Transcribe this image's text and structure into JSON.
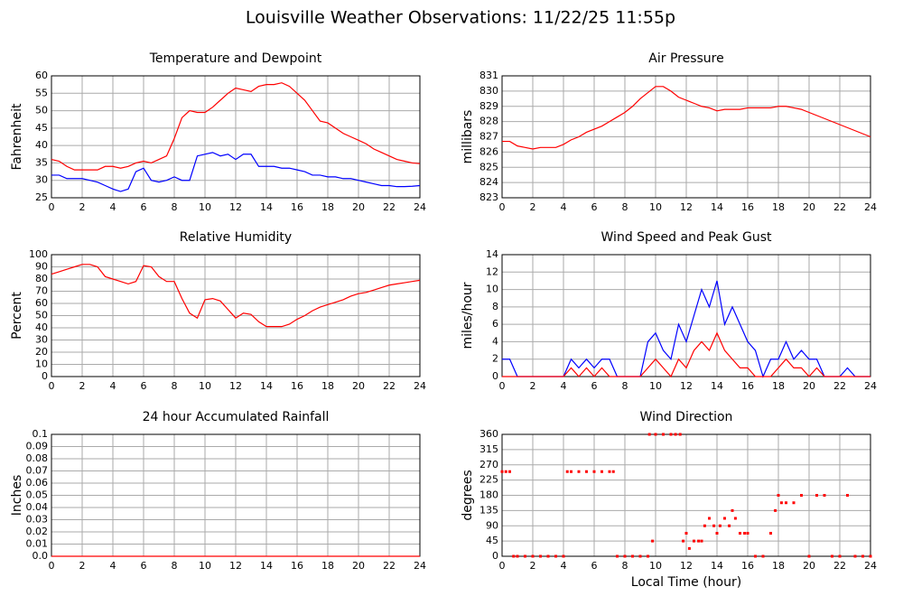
{
  "title": "Louisville Weather Observations: 11/22/25 11:55p",
  "chart_data": [
    {
      "type": "line",
      "title": "Temperature and Dewpoint",
      "ylabel": "Fahrenheit",
      "grid": true,
      "xlim": [
        0,
        24
      ],
      "xticks": [
        0,
        2,
        4,
        6,
        8,
        10,
        12,
        14,
        16,
        18,
        20,
        22,
        24
      ],
      "ylim": [
        25,
        60
      ],
      "yticks": [
        25,
        30,
        35,
        40,
        45,
        50,
        55,
        60
      ],
      "x": [
        0,
        0.5,
        1,
        1.5,
        2,
        2.5,
        3,
        3.5,
        4,
        4.5,
        5,
        5.5,
        6,
        6.5,
        7,
        7.5,
        8,
        8.5,
        9,
        9.5,
        10,
        10.5,
        11,
        11.5,
        12,
        12.5,
        13,
        13.5,
        14,
        14.5,
        15,
        15.5,
        16,
        16.5,
        17,
        17.5,
        18,
        18.5,
        19,
        19.5,
        20,
        20.5,
        21,
        21.5,
        22,
        22.5,
        23,
        23.5,
        24
      ],
      "series": [
        {
          "name": "Temperature",
          "color": "#ff0000",
          "values": [
            36,
            35.5,
            34,
            33,
            33,
            33,
            33,
            34,
            34,
            33.5,
            34,
            35,
            35.5,
            35,
            36,
            37,
            42,
            48,
            50,
            49.5,
            49.5,
            51,
            53,
            55,
            56.5,
            56,
            55.5,
            57,
            57.5,
            57.5,
            58,
            57,
            55,
            53,
            50,
            47,
            46.5,
            45,
            43.5,
            42.5,
            41.5,
            40.5,
            39,
            38,
            37,
            36,
            35.5,
            35,
            34.8
          ]
        },
        {
          "name": "Dewpoint",
          "color": "#0000ff",
          "values": [
            31.5,
            31.5,
            30.5,
            30.5,
            30.5,
            30,
            29.5,
            28.5,
            27.5,
            26.8,
            27.5,
            32.5,
            33.5,
            30,
            29.5,
            30,
            31,
            30,
            30,
            37,
            37.5,
            38,
            37,
            37.5,
            36,
            37.5,
            37.5,
            34,
            34,
            34,
            33.5,
            33.5,
            33,
            32.5,
            31.5,
            31.5,
            31,
            31,
            30.5,
            30.5,
            30,
            29.5,
            29,
            28.5,
            28.5,
            28.2,
            28.2,
            28.3,
            28.5
          ]
        }
      ]
    },
    {
      "type": "line",
      "title": "Air Pressure",
      "ylabel": "millibars",
      "grid": true,
      "xlim": [
        0,
        24
      ],
      "xticks": [
        0,
        2,
        4,
        6,
        8,
        10,
        12,
        14,
        16,
        18,
        20,
        22,
        24
      ],
      "ylim": [
        823,
        831
      ],
      "yticks": [
        823,
        824,
        825,
        826,
        827,
        828,
        829,
        830,
        831
      ],
      "x": [
        0,
        0.5,
        1,
        1.5,
        2,
        2.5,
        3,
        3.5,
        4,
        4.5,
        5,
        5.5,
        6,
        6.5,
        7,
        7.5,
        8,
        8.5,
        9,
        9.5,
        10,
        10.5,
        11,
        11.5,
        12,
        12.5,
        13,
        13.5,
        14,
        14.5,
        15,
        15.5,
        16,
        16.5,
        17,
        17.5,
        18,
        18.5,
        19,
        19.5,
        20,
        20.5,
        21,
        21.5,
        22,
        22.5,
        23,
        23.5,
        24
      ],
      "series": [
        {
          "name": "Pressure",
          "color": "#ff0000",
          "values": [
            826.7,
            826.7,
            826.4,
            826.3,
            826.2,
            826.3,
            826.3,
            826.3,
            826.5,
            826.8,
            827,
            827.3,
            827.5,
            827.7,
            828,
            828.3,
            828.6,
            829,
            829.5,
            829.9,
            830.3,
            830.3,
            830,
            829.6,
            829.4,
            829.2,
            829,
            828.9,
            828.7,
            828.8,
            828.8,
            828.8,
            828.9,
            828.9,
            828.9,
            828.9,
            829,
            829,
            828.9,
            828.8,
            828.6,
            828.4,
            828.2,
            828,
            827.8,
            827.6,
            827.4,
            827.2,
            827
          ]
        }
      ]
    },
    {
      "type": "line",
      "title": "Relative Humidity",
      "ylabel": "Percent",
      "grid": true,
      "xlim": [
        0,
        24
      ],
      "xticks": [
        0,
        2,
        4,
        6,
        8,
        10,
        12,
        14,
        16,
        18,
        20,
        22,
        24
      ],
      "ylim": [
        0,
        100
      ],
      "yticks": [
        0,
        10,
        20,
        30,
        40,
        50,
        60,
        70,
        80,
        90,
        100
      ],
      "x": [
        0,
        0.5,
        1,
        1.5,
        2,
        2.5,
        3,
        3.5,
        4,
        4.5,
        5,
        5.5,
        6,
        6.5,
        7,
        7.5,
        8,
        8.5,
        9,
        9.5,
        10,
        10.5,
        11,
        11.5,
        12,
        12.5,
        13,
        13.5,
        14,
        14.5,
        15,
        15.5,
        16,
        16.5,
        17,
        17.5,
        18,
        18.5,
        19,
        19.5,
        20,
        20.5,
        21,
        21.5,
        22,
        22.5,
        23,
        23.5,
        24
      ],
      "series": [
        {
          "name": "Relative Humidity",
          "color": "#ff0000",
          "values": [
            84,
            86,
            88,
            90,
            92,
            92,
            90,
            82,
            80,
            78,
            76,
            78,
            91,
            90,
            82,
            78,
            78,
            64,
            52,
            48,
            63,
            64,
            62,
            55,
            48,
            52,
            51,
            45,
            41,
            41,
            41,
            43,
            47,
            50,
            54,
            57,
            59,
            61,
            63,
            66,
            68,
            69,
            71,
            73,
            75,
            76,
            77,
            78,
            79
          ]
        }
      ]
    },
    {
      "type": "line",
      "title": "Wind Speed and Peak Gust",
      "ylabel": "miles/hour",
      "grid": true,
      "xlim": [
        0,
        24
      ],
      "xticks": [
        0,
        2,
        4,
        6,
        8,
        10,
        12,
        14,
        16,
        18,
        20,
        22,
        24
      ],
      "ylim": [
        0,
        14
      ],
      "yticks": [
        0,
        2,
        4,
        6,
        8,
        10,
        12,
        14
      ],
      "x": [
        0,
        0.5,
        1,
        1.5,
        2,
        2.5,
        3,
        3.5,
        4,
        4.5,
        5,
        5.5,
        6,
        6.5,
        7,
        7.5,
        8,
        8.5,
        9,
        9.5,
        10,
        10.5,
        11,
        11.5,
        12,
        12.5,
        13,
        13.5,
        14,
        14.5,
        15,
        15.5,
        16,
        16.5,
        17,
        17.5,
        18,
        18.5,
        19,
        19.5,
        20,
        20.5,
        21,
        21.5,
        22,
        22.5,
        23,
        23.5,
        24
      ],
      "series": [
        {
          "name": "Peak Gust",
          "color": "#0000ff",
          "values": [
            2,
            2,
            0,
            0,
            0,
            0,
            0,
            0,
            0,
            2,
            1,
            2,
            1,
            2,
            2,
            0,
            0,
            0,
            0,
            4,
            5,
            3,
            2,
            6,
            4,
            7,
            10,
            8,
            11,
            6,
            8,
            6,
            4,
            3,
            0,
            2,
            2,
            4,
            2,
            3,
            2,
            2,
            0,
            0,
            0,
            1,
            0,
            0,
            0
          ]
        },
        {
          "name": "Wind Speed",
          "color": "#ff0000",
          "values": [
            0,
            0,
            0,
            0,
            0,
            0,
            0,
            0,
            0,
            1,
            0,
            1,
            0,
            1,
            0,
            0,
            0,
            0,
            0,
            1,
            2,
            1,
            0,
            2,
            1,
            3,
            4,
            3,
            5,
            3,
            2,
            1,
            1,
            0,
            0,
            0,
            1,
            2,
            1,
            1,
            0,
            1,
            0,
            0,
            0,
            0,
            0,
            0,
            0
          ]
        }
      ]
    },
    {
      "type": "line",
      "title": "24 hour Accumulated Rainfall",
      "ylabel": "Inches",
      "grid": true,
      "xlim": [
        0,
        24
      ],
      "xticks": [
        0,
        2,
        4,
        6,
        8,
        10,
        12,
        14,
        16,
        18,
        20,
        22,
        24
      ],
      "ylim": [
        0,
        0.1
      ],
      "yticks": [
        {
          "value": 0,
          "label": "0.0"
        },
        0.01,
        0.02,
        0.03,
        0.04,
        0.05,
        0.06,
        0.07,
        0.08,
        0.09,
        0.1
      ],
      "x": [
        0,
        24
      ],
      "series": [
        {
          "name": "Rainfall",
          "color": "#ff0000",
          "values": [
            0,
            0
          ]
        }
      ]
    },
    {
      "type": "scatter",
      "title": "Wind Direction",
      "ylabel": "degrees",
      "xlabel": "Local Time (hour)",
      "grid": true,
      "xlim": [
        0,
        24
      ],
      "xticks": [
        0,
        2,
        4,
        6,
        8,
        10,
        12,
        14,
        16,
        18,
        20,
        22,
        24
      ],
      "ylim": [
        0,
        360
      ],
      "yticks": [
        0,
        45,
        90,
        135,
        180,
        225,
        270,
        315,
        360
      ],
      "x": [
        0,
        0.25,
        0.5,
        0.75,
        1,
        1.5,
        2,
        2.5,
        3,
        3.5,
        4,
        4.25,
        4.5,
        5,
        5.5,
        6,
        6.5,
        7,
        7.25,
        7.5,
        8,
        8.5,
        9,
        9.5,
        9.6,
        9.8,
        10,
        10.5,
        11,
        11.3,
        11.6,
        11.8,
        12,
        12.2,
        12.5,
        12.8,
        13,
        13.2,
        13.5,
        13.8,
        14,
        14.2,
        14.5,
        14.8,
        15,
        15.2,
        15.5,
        15.8,
        16,
        16.5,
        17,
        17.5,
        17.8,
        18,
        18.2,
        18.5,
        19,
        19.5,
        20,
        20.5,
        21,
        21.5,
        22,
        22.5,
        23,
        23.5,
        24
      ],
      "series": [
        {
          "name": "Direction",
          "color": "#ff0000",
          "values": [
            250,
            250,
            250,
            0,
            0,
            0,
            0,
            0,
            0,
            0,
            0,
            250,
            250,
            250,
            250,
            250,
            250,
            250,
            250,
            0,
            0,
            0,
            0,
            0,
            360,
            45,
            360,
            360,
            360,
            360,
            360,
            45,
            68,
            23,
            45,
            45,
            45,
            90,
            112,
            90,
            68,
            90,
            112,
            90,
            135,
            112,
            68,
            68,
            68,
            0,
            0,
            68,
            135,
            180,
            158,
            158,
            158,
            180,
            0,
            180,
            180,
            0,
            0,
            180,
            0,
            0,
            0
          ]
        }
      ]
    }
  ]
}
